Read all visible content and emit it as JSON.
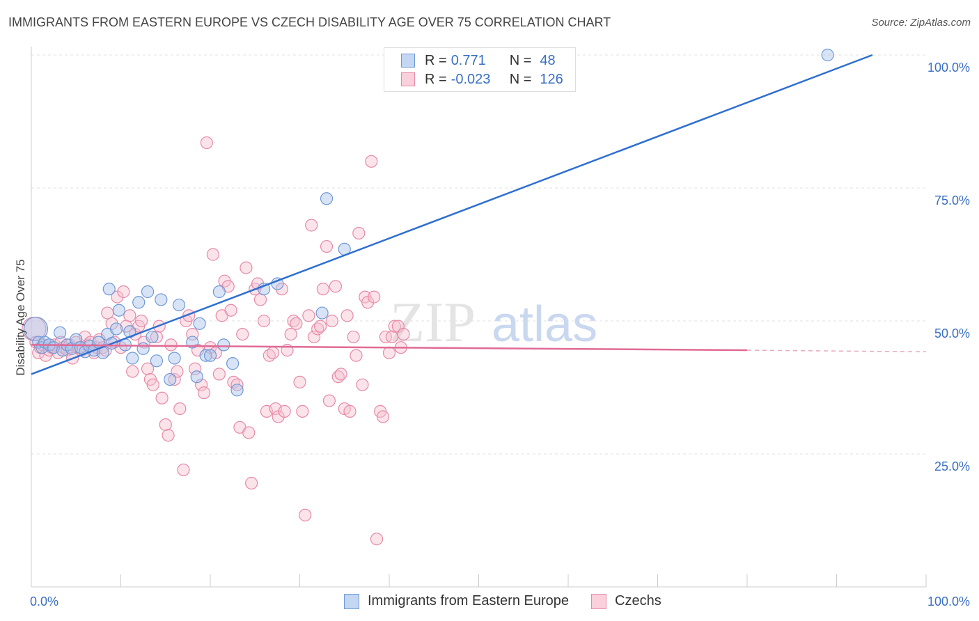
{
  "title": "IMMIGRANTS FROM EASTERN EUROPE VS CZECH DISABILITY AGE OVER 75 CORRELATION CHART",
  "source": "Source: ZipAtlas.com",
  "watermark": {
    "zip": "ZIP",
    "atlas": "atlas"
  },
  "legend": {
    "r_label": "R =",
    "n_label": "N =",
    "rows": [
      {
        "r": "0.771",
        "n": "48",
        "color": "#a8c4ec",
        "border": "#6f98d6"
      },
      {
        "r": "-0.023",
        "n": "126",
        "color": "#f6c0d0",
        "border": "#e68aa8"
      }
    ]
  },
  "chart_data": {
    "type": "scatter",
    "title": "IMMIGRANTS FROM EASTERN EUROPE VS CZECH DISABILITY AGE OVER 75 CORRELATION CHART",
    "xlabel": "",
    "ylabel": "Disability Age Over 75",
    "xlim": [
      0,
      100
    ],
    "ylim": [
      0,
      100
    ],
    "x_tick_labels": [
      "0.0%",
      "100.0%"
    ],
    "y_tick_labels": [
      "25.0%",
      "50.0%",
      "75.0%",
      "100.0%"
    ],
    "y_ticks": [
      25,
      50,
      75,
      100
    ],
    "series": [
      {
        "name": "Immigrants from Eastern Europe",
        "color": "#6f98d6",
        "fill": "#a8c4ec",
        "trend": {
          "x": [
            0,
            94
          ],
          "y": [
            40,
            100
          ],
          "color": "#2f6fd0"
        },
        "points": [
          [
            0.5,
            48.5
          ],
          [
            0.8,
            46
          ],
          [
            1.2,
            45
          ],
          [
            1.5,
            46
          ],
          [
            2,
            45.5
          ],
          [
            2.5,
            45
          ],
          [
            3.2,
            47.8
          ],
          [
            3.5,
            44.5
          ],
          [
            4,
            45.5
          ],
          [
            4.5,
            44.8
          ],
          [
            5,
            46.5
          ],
          [
            5.5,
            45
          ],
          [
            6,
            44.2
          ],
          [
            6.5,
            45.3
          ],
          [
            7,
            44.5
          ],
          [
            7.5,
            46
          ],
          [
            8,
            44
          ],
          [
            8.5,
            47.5
          ],
          [
            8.7,
            56
          ],
          [
            9,
            45.8
          ],
          [
            9.5,
            48.5
          ],
          [
            9.8,
            52
          ],
          [
            10.5,
            45.5
          ],
          [
            11,
            48
          ],
          [
            11.3,
            43
          ],
          [
            12,
            53.5
          ],
          [
            12.5,
            44.8
          ],
          [
            13,
            55.5
          ],
          [
            13.5,
            47
          ],
          [
            14,
            42.5
          ],
          [
            14.5,
            54
          ],
          [
            15.5,
            39
          ],
          [
            16,
            43
          ],
          [
            16.5,
            53
          ],
          [
            18,
            46
          ],
          [
            18.5,
            39.5
          ],
          [
            18.8,
            49.5
          ],
          [
            19.5,
            43.5
          ],
          [
            20,
            43.5
          ],
          [
            21,
            55.5
          ],
          [
            21.5,
            45.5
          ],
          [
            22.5,
            42
          ],
          [
            23,
            37
          ],
          [
            26,
            56
          ],
          [
            27.5,
            57
          ],
          [
            32.5,
            51.5
          ],
          [
            33,
            73
          ],
          [
            35,
            63.5
          ],
          [
            89,
            100
          ]
        ]
      },
      {
        "name": "Czechs",
        "color": "#e68aa8",
        "fill": "#f6c0d0",
        "trend": {
          "x": [
            0,
            80
          ],
          "y": [
            45.5,
            44.5
          ],
          "dash_x": [
            80,
            100
          ],
          "color": "#e06a95"
        },
        "points": [
          [
            0.3,
            48.5
          ],
          [
            0.5,
            46
          ],
          [
            0.8,
            44
          ],
          [
            1,
            45
          ],
          [
            1.3,
            45.5
          ],
          [
            1.6,
            43.5
          ],
          [
            2,
            44.5
          ],
          [
            2.3,
            45
          ],
          [
            2.6,
            45.5
          ],
          [
            3,
            44
          ],
          [
            3.3,
            46
          ],
          [
            3.6,
            45
          ],
          [
            4,
            44.5
          ],
          [
            4.3,
            45.5
          ],
          [
            4.6,
            43
          ],
          [
            5,
            46
          ],
          [
            5.3,
            45
          ],
          [
            5.6,
            44.5
          ],
          [
            6,
            47
          ],
          [
            6.3,
            45.5
          ],
          [
            6.6,
            46
          ],
          [
            7,
            44
          ],
          [
            7.3,
            45
          ],
          [
            7.6,
            46.5
          ],
          [
            8,
            45
          ],
          [
            8.3,
            44.5
          ],
          [
            8.5,
            51.5
          ],
          [
            9,
            49.5
          ],
          [
            9.3,
            46
          ],
          [
            9.6,
            54.5
          ],
          [
            10,
            45
          ],
          [
            10.3,
            55.5
          ],
          [
            10.6,
            49
          ],
          [
            11,
            51
          ],
          [
            11.3,
            40.5
          ],
          [
            11.6,
            47.5
          ],
          [
            12,
            49
          ],
          [
            12.3,
            50
          ],
          [
            12.6,
            46
          ],
          [
            13,
            41
          ],
          [
            13.3,
            39
          ],
          [
            13.6,
            38
          ],
          [
            14,
            47
          ],
          [
            14.3,
            49
          ],
          [
            14.6,
            35.5
          ],
          [
            15,
            30.5
          ],
          [
            15.3,
            28.5
          ],
          [
            15.6,
            45.5
          ],
          [
            16,
            39
          ],
          [
            16.3,
            40.5
          ],
          [
            16.6,
            33.5
          ],
          [
            17,
            22
          ],
          [
            17.3,
            50
          ],
          [
            17.6,
            51
          ],
          [
            18,
            47.5
          ],
          [
            18.3,
            41
          ],
          [
            18.6,
            44.5
          ],
          [
            19,
            38
          ],
          [
            19.3,
            36.5
          ],
          [
            19.6,
            83.5
          ],
          [
            20,
            45
          ],
          [
            20.3,
            62.5
          ],
          [
            20.6,
            44
          ],
          [
            21,
            40
          ],
          [
            21.3,
            51
          ],
          [
            21.6,
            57.5
          ],
          [
            22,
            56.5
          ],
          [
            22.3,
            52
          ],
          [
            22.6,
            38.5
          ],
          [
            23,
            38
          ],
          [
            23.3,
            30
          ],
          [
            23.6,
            47.5
          ],
          [
            24,
            60
          ],
          [
            24.3,
            29
          ],
          [
            24.6,
            19.5
          ],
          [
            25,
            56
          ],
          [
            25.3,
            57
          ],
          [
            25.6,
            54
          ],
          [
            26,
            50
          ],
          [
            26.3,
            33
          ],
          [
            26.6,
            43.5
          ],
          [
            27,
            44
          ],
          [
            27.3,
            33.5
          ],
          [
            27.6,
            32
          ],
          [
            28,
            56
          ],
          [
            28.3,
            33
          ],
          [
            28.6,
            44.5
          ],
          [
            29,
            47.5
          ],
          [
            29.3,
            50
          ],
          [
            29.6,
            49.5
          ],
          [
            30,
            38.5
          ],
          [
            30.3,
            33
          ],
          [
            30.6,
            13.5
          ],
          [
            31,
            51
          ],
          [
            31.3,
            68
          ],
          [
            31.6,
            47
          ],
          [
            32,
            48.5
          ],
          [
            32.3,
            49
          ],
          [
            32.6,
            56
          ],
          [
            33,
            64
          ],
          [
            33.3,
            35
          ],
          [
            33.6,
            50
          ],
          [
            34,
            56.5
          ],
          [
            34.3,
            39.5
          ],
          [
            34.6,
            40
          ],
          [
            35,
            33.5
          ],
          [
            35.3,
            51
          ],
          [
            35.6,
            33
          ],
          [
            36,
            47
          ],
          [
            36.3,
            43.5
          ],
          [
            36.6,
            66.5
          ],
          [
            37,
            38
          ],
          [
            37.3,
            54.5
          ],
          [
            37.6,
            53.5
          ],
          [
            38,
            80
          ],
          [
            38.3,
            54.5
          ],
          [
            38.6,
            9
          ],
          [
            39,
            33
          ],
          [
            39.3,
            32
          ],
          [
            39.6,
            47
          ],
          [
            40,
            44
          ],
          [
            40.3,
            47
          ],
          [
            40.6,
            49
          ],
          [
            41,
            49
          ],
          [
            41.3,
            45
          ],
          [
            41.6,
            47.5
          ]
        ]
      }
    ]
  },
  "bottom_legend": [
    "Immigrants from Eastern Europe",
    "Czechs"
  ]
}
